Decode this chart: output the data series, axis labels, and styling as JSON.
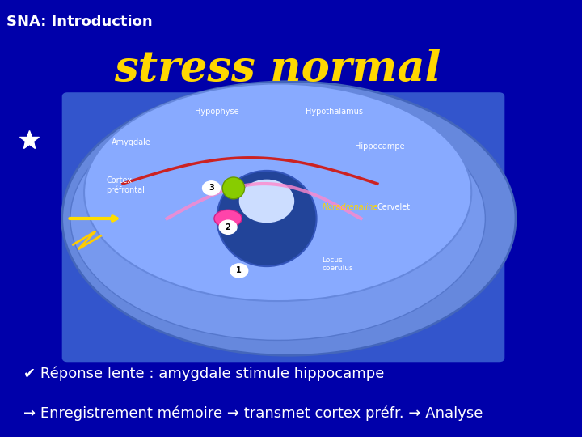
{
  "background_color": "#0000AA",
  "title": "SNA: Introduction",
  "title_color": "#FFFFFF",
  "title_fontsize": 13,
  "title_fontstyle": "bold",
  "stress_text": "stress normal",
  "stress_color": "#FFD700",
  "stress_fontsize": 38,
  "stress_fontstyle": "italic bold",
  "bullet1_symbol": "✔̶",
  "bullet1_text": "Réponse lente : amygdale stimule hippocampe",
  "bullet1_color": "#FFFFFF",
  "bullet1_fontsize": 13,
  "bullet2_text": "→ Enregistrement mémoire → transmet cortex préfr. → Analyse",
  "bullet2_color": "#FFFFFF",
  "bullet2_fontsize": 13,
  "brain_image_placeholder": true,
  "fig_bg": "#0000AA"
}
